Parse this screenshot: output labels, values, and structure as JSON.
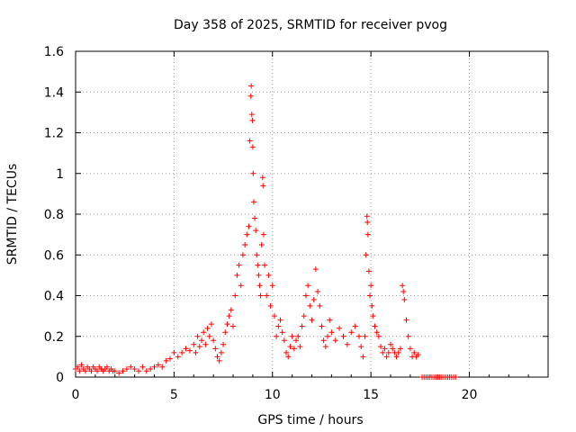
{
  "chart_data": {
    "type": "scatter",
    "title": "Day 358 of 2025, SRMTID for receiver pvog",
    "xlabel": "GPS time / hours",
    "ylabel": "SRMTID / TECUs",
    "xlim": [
      0,
      24
    ],
    "ylim": [
      0,
      1.6
    ],
    "x_ticks": [
      0,
      5,
      10,
      15,
      20
    ],
    "x_tick_labels": [
      "0",
      "5",
      "10",
      "15",
      "20"
    ],
    "y_ticks": [
      0,
      0.2,
      0.4,
      0.6,
      0.8,
      1,
      1.2,
      1.4,
      1.6
    ],
    "y_tick_labels": [
      "0",
      "0.2",
      "0.4",
      "0.6",
      "0.8",
      "1",
      "1.2",
      "1.4",
      "1.6"
    ],
    "grid": true,
    "marker": "+",
    "color": "#ff0000",
    "series": [
      {
        "name": "SRMTID",
        "points": [
          [
            0.0,
            0.04
          ],
          [
            0.1,
            0.05
          ],
          [
            0.2,
            0.03
          ],
          [
            0.3,
            0.06
          ],
          [
            0.4,
            0.04
          ],
          [
            0.5,
            0.03
          ],
          [
            0.6,
            0.05
          ],
          [
            0.7,
            0.04
          ],
          [
            0.8,
            0.03
          ],
          [
            0.9,
            0.05
          ],
          [
            1.0,
            0.04
          ],
          [
            1.1,
            0.03
          ],
          [
            1.2,
            0.05
          ],
          [
            1.3,
            0.04
          ],
          [
            1.4,
            0.03
          ],
          [
            1.5,
            0.04
          ],
          [
            1.6,
            0.05
          ],
          [
            1.7,
            0.03
          ],
          [
            1.8,
            0.04
          ],
          [
            1.9,
            0.03
          ],
          [
            2.0,
            0.03
          ],
          [
            2.2,
            0.02
          ],
          [
            2.4,
            0.03
          ],
          [
            2.6,
            0.04
          ],
          [
            2.8,
            0.05
          ],
          [
            3.0,
            0.04
          ],
          [
            3.2,
            0.03
          ],
          [
            3.4,
            0.05
          ],
          [
            3.6,
            0.03
          ],
          [
            3.8,
            0.04
          ],
          [
            4.0,
            0.05
          ],
          [
            4.2,
            0.06
          ],
          [
            4.4,
            0.05
          ],
          [
            4.6,
            0.08
          ],
          [
            4.8,
            0.09
          ],
          [
            5.0,
            0.12
          ],
          [
            5.2,
            0.1
          ],
          [
            5.4,
            0.12
          ],
          [
            5.6,
            0.14
          ],
          [
            5.8,
            0.13
          ],
          [
            6.0,
            0.16
          ],
          [
            6.1,
            0.12
          ],
          [
            6.2,
            0.2
          ],
          [
            6.3,
            0.15
          ],
          [
            6.4,
            0.18
          ],
          [
            6.5,
            0.22
          ],
          [
            6.6,
            0.16
          ],
          [
            6.7,
            0.24
          ],
          [
            6.8,
            0.2
          ],
          [
            6.9,
            0.26
          ],
          [
            7.0,
            0.18
          ],
          [
            7.1,
            0.14
          ],
          [
            7.2,
            0.1
          ],
          [
            7.3,
            0.08
          ],
          [
            7.4,
            0.12
          ],
          [
            7.5,
            0.16
          ],
          [
            7.6,
            0.22
          ],
          [
            7.7,
            0.26
          ],
          [
            7.8,
            0.3
          ],
          [
            7.9,
            0.33
          ],
          [
            8.0,
            0.25
          ],
          [
            8.1,
            0.4
          ],
          [
            8.2,
            0.5
          ],
          [
            8.3,
            0.55
          ],
          [
            8.4,
            0.45
          ],
          [
            8.5,
            0.6
          ],
          [
            8.6,
            0.65
          ],
          [
            8.7,
            0.7
          ],
          [
            8.8,
            0.74
          ],
          [
            8.85,
            1.16
          ],
          [
            8.9,
            1.38
          ],
          [
            8.92,
            1.43
          ],
          [
            8.95,
            1.29
          ],
          [
            8.98,
            1.26
          ],
          [
            9.0,
            1.13
          ],
          [
            9.02,
            1.0
          ],
          [
            9.05,
            0.86
          ],
          [
            9.1,
            0.78
          ],
          [
            9.15,
            0.72
          ],
          [
            9.2,
            0.6
          ],
          [
            9.25,
            0.55
          ],
          [
            9.3,
            0.5
          ],
          [
            9.35,
            0.45
          ],
          [
            9.4,
            0.4
          ],
          [
            9.45,
            0.65
          ],
          [
            9.5,
            0.98
          ],
          [
            9.52,
            0.94
          ],
          [
            9.55,
            0.7
          ],
          [
            9.6,
            0.55
          ],
          [
            9.7,
            0.4
          ],
          [
            9.8,
            0.5
          ],
          [
            9.9,
            0.35
          ],
          [
            10.0,
            0.45
          ],
          [
            10.1,
            0.3
          ],
          [
            10.2,
            0.2
          ],
          [
            10.3,
            0.25
          ],
          [
            10.4,
            0.28
          ],
          [
            10.5,
            0.22
          ],
          [
            10.6,
            0.18
          ],
          [
            10.7,
            0.12
          ],
          [
            10.8,
            0.1
          ],
          [
            10.9,
            0.15
          ],
          [
            11.0,
            0.2
          ],
          [
            11.1,
            0.14
          ],
          [
            11.2,
            0.18
          ],
          [
            11.3,
            0.2
          ],
          [
            11.4,
            0.15
          ],
          [
            11.5,
            0.25
          ],
          [
            11.6,
            0.3
          ],
          [
            11.7,
            0.4
          ],
          [
            11.8,
            0.45
          ],
          [
            11.9,
            0.35
          ],
          [
            12.0,
            0.28
          ],
          [
            12.1,
            0.38
          ],
          [
            12.2,
            0.53
          ],
          [
            12.3,
            0.42
          ],
          [
            12.4,
            0.35
          ],
          [
            12.5,
            0.25
          ],
          [
            12.6,
            0.18
          ],
          [
            12.7,
            0.15
          ],
          [
            12.8,
            0.2
          ],
          [
            12.9,
            0.28
          ],
          [
            13.0,
            0.22
          ],
          [
            13.2,
            0.18
          ],
          [
            13.4,
            0.24
          ],
          [
            13.6,
            0.2
          ],
          [
            13.8,
            0.16
          ],
          [
            14.0,
            0.22
          ],
          [
            14.2,
            0.25
          ],
          [
            14.4,
            0.2
          ],
          [
            14.5,
            0.15
          ],
          [
            14.6,
            0.1
          ],
          [
            14.7,
            0.2
          ],
          [
            14.75,
            0.6
          ],
          [
            14.8,
            0.79
          ],
          [
            14.82,
            0.76
          ],
          [
            14.85,
            0.7
          ],
          [
            14.9,
            0.52
          ],
          [
            14.95,
            0.4
          ],
          [
            15.0,
            0.45
          ],
          [
            15.05,
            0.35
          ],
          [
            15.1,
            0.3
          ],
          [
            15.2,
            0.25
          ],
          [
            15.3,
            0.22
          ],
          [
            15.4,
            0.2
          ],
          [
            15.5,
            0.15
          ],
          [
            15.6,
            0.12
          ],
          [
            15.7,
            0.14
          ],
          [
            15.8,
            0.1
          ],
          [
            15.9,
            0.12
          ],
          [
            16.0,
            0.16
          ],
          [
            16.1,
            0.14
          ],
          [
            16.2,
            0.12
          ],
          [
            16.3,
            0.1
          ],
          [
            16.4,
            0.12
          ],
          [
            16.5,
            0.14
          ],
          [
            16.6,
            0.45
          ],
          [
            16.65,
            0.42
          ],
          [
            16.7,
            0.38
          ],
          [
            16.8,
            0.28
          ],
          [
            16.9,
            0.2
          ],
          [
            17.0,
            0.14
          ],
          [
            17.1,
            0.1
          ],
          [
            17.2,
            0.12
          ],
          [
            17.3,
            0.1
          ],
          [
            17.4,
            0.11
          ],
          [
            17.6,
            0.0
          ],
          [
            17.7,
            0.0
          ],
          [
            17.8,
            0.0
          ],
          [
            17.9,
            0.0
          ],
          [
            18.0,
            0.0
          ],
          [
            18.1,
            0.0
          ],
          [
            18.2,
            0.0
          ],
          [
            18.3,
            0.0
          ],
          [
            18.4,
            0.0
          ],
          [
            18.5,
            0.0
          ],
          [
            18.6,
            0.0
          ],
          [
            18.7,
            0.0
          ],
          [
            18.8,
            0.0
          ],
          [
            18.9,
            0.0
          ],
          [
            19.0,
            0.0
          ],
          [
            19.1,
            0.0
          ],
          [
            19.2,
            0.0
          ],
          [
            19.3,
            0.0
          ]
        ]
      }
    ]
  }
}
